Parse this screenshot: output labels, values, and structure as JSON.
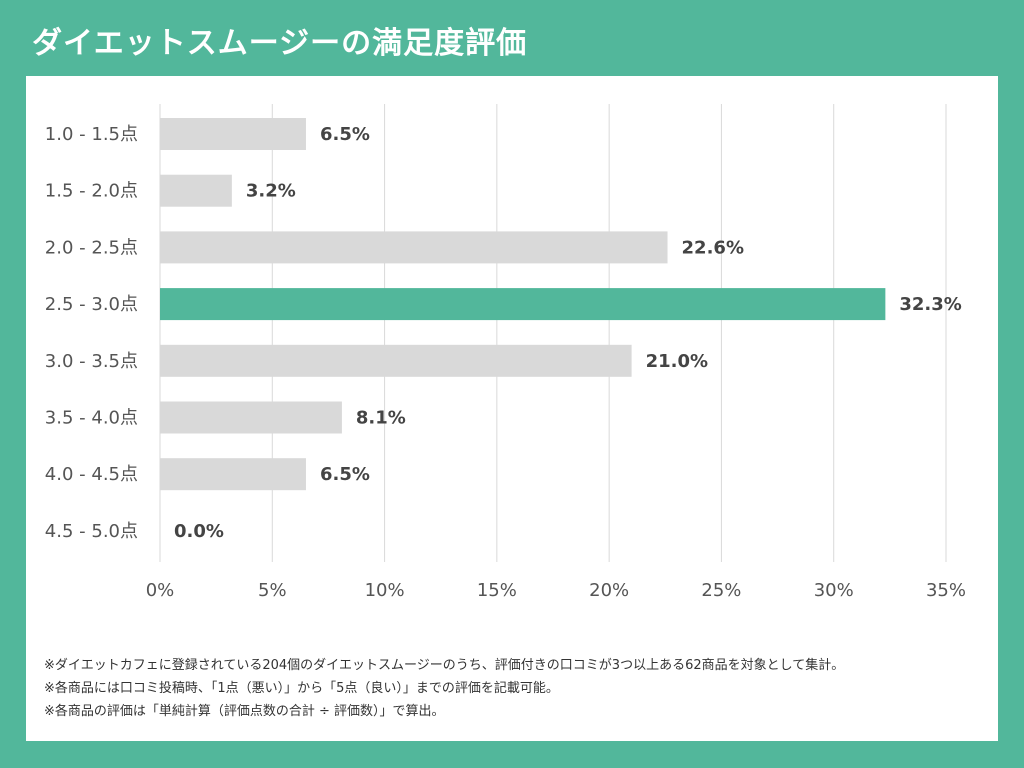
{
  "title": "ダイエットスムージーの満足度評価",
  "chart_data": {
    "type": "bar",
    "orientation": "horizontal",
    "categories": [
      "1.0 - 1.5点",
      "1.5 - 2.0点",
      "2.0 - 2.5点",
      "2.5 - 3.0点",
      "3.0 - 3.5点",
      "3.5 - 4.0点",
      "4.0 - 4.5点",
      "4.5 - 5.0点"
    ],
    "values": [
      6.5,
      3.2,
      22.6,
      32.3,
      21.0,
      8.1,
      6.5,
      0.0
    ],
    "value_labels": [
      "6.5%",
      "3.2%",
      "22.6%",
      "32.3%",
      "21.0%",
      "8.1%",
      "6.5%",
      "0.0%"
    ],
    "highlight_index": 3,
    "xlim": [
      0,
      35
    ],
    "xticks": [
      0,
      5,
      10,
      15,
      20,
      25,
      30,
      35
    ],
    "xtick_labels": [
      "0%",
      "5%",
      "10%",
      "15%",
      "20%",
      "25%",
      "30%",
      "35%"
    ],
    "grid": true,
    "colors": {
      "default": "#d9d9d9",
      "highlight": "#52b79b",
      "grid": "#d9d9d9"
    }
  },
  "notes": [
    "※ダイエットカフェに登録されている204個のダイエットスムージーのうち、評価付きの口コミが3つ以上ある62商品を対象として集計。",
    "※各商品には口コミ投稿時、「1点（悪い）」から「5点（良い）」までの評価を記載可能。",
    "※各商品の評価は「単純計算（評価点数の合計 ÷ 評価数）」で算出。"
  ]
}
